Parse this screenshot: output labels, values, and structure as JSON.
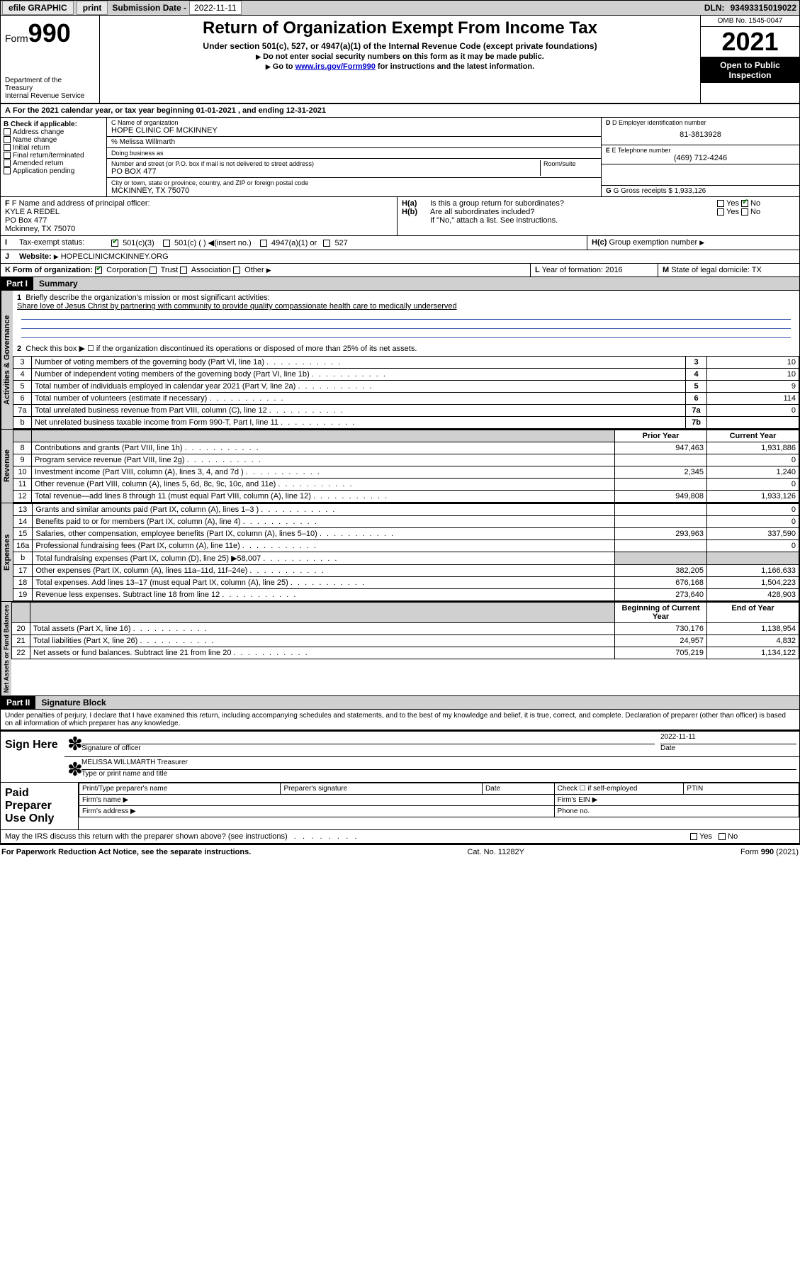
{
  "topbar": {
    "efile": "efile GRAPHIC",
    "print": "print",
    "subdate_label": "Submission Date - ",
    "subdate": "2022-11-11",
    "dln_label": "DLN: ",
    "dln": "93493315019022"
  },
  "header": {
    "form_label": "Form",
    "form_number": "990",
    "title": "Return of Organization Exempt From Income Tax",
    "subtitle": "Under section 501(c), 527, or 4947(a)(1) of the Internal Revenue Code (except private foundations)",
    "instr1": "Do not enter social security numbers on this form as it may be made public.",
    "instr2_pre": "Go to ",
    "instr2_link": "www.irs.gov/Form990",
    "instr2_post": " for instructions and the latest information.",
    "dept": "Department of the Treasury\nInternal Revenue Service",
    "omb": "OMB No. 1545-0047",
    "year": "2021",
    "inspect": "Open to Public Inspection"
  },
  "line_a": "For the 2021 calendar year, or tax year beginning 01-01-2021    , and ending 12-31-2021",
  "box_b": {
    "label": "B Check if applicable:",
    "items": [
      "Address change",
      "Name change",
      "Initial return",
      "Final return/terminated",
      "Amended return",
      "Application pending"
    ]
  },
  "box_c": {
    "name_lbl": "C Name of organization",
    "name": "HOPE CLINIC OF MCKINNEY",
    "care_lbl": "% ",
    "care": "Melissa Willmarth",
    "dba_lbl": "Doing business as",
    "addr_lbl": "Number and street (or P.O. box if mail is not delivered to street address)",
    "room_lbl": "Room/suite",
    "addr": "PO BOX 477",
    "city_lbl": "City or town, state or province, country, and ZIP or foreign postal code",
    "city": "MCKINNEY, TX  75070"
  },
  "box_d": {
    "lbl": "D Employer identification number",
    "val": "81-3813928"
  },
  "box_e": {
    "lbl": "E Telephone number",
    "val": "(469) 712-4246"
  },
  "box_g": {
    "lbl": "G Gross receipts $ ",
    "val": "1,933,126"
  },
  "box_f": {
    "lbl": "F Name and address of principal officer:",
    "line1": "KYLE A REDEL",
    "line2": "PO Box 477",
    "line3": "Mckinney, TX  75070"
  },
  "box_h": {
    "ha": "Is this a group return for subordinates?",
    "hb": "Are all subordinates included?",
    "hnote": "If \"No,\" attach a list. See instructions.",
    "hc": "Group exemption number",
    "yes": "Yes",
    "no": "No"
  },
  "line_i": {
    "lbl": "Tax-exempt status:",
    "o1": "501(c)(3)",
    "o2": "501(c) (  )",
    "o2b": "(insert no.)",
    "o3": "4947(a)(1) or",
    "o4": "527"
  },
  "line_j": {
    "lbl": "Website:",
    "val": "HOPECLINICMCKINNEY.ORG"
  },
  "line_k": {
    "lbl": "K Form of organization:",
    "o1": "Corporation",
    "o2": "Trust",
    "o3": "Association",
    "o4": "Other"
  },
  "line_l": {
    "lbl": "L Year of formation: ",
    "val": "2016"
  },
  "line_m": {
    "lbl": "M State of legal domicile: ",
    "val": "TX"
  },
  "part1": {
    "hdr": "Part I",
    "title": "Summary",
    "q1_lbl": "Briefly describe the organization's mission or most significant activities:",
    "q1_val": "Share love of Jesus Christ by partnering with community to provide quality compassionate health care to medically underserved",
    "q2": "Check this box ▶ ☐  if the organization discontinued its operations or disposed of more than 25% of its net assets.",
    "rows_gov": [
      {
        "n": "3",
        "d": "Number of voting members of the governing body (Part VI, line 1a)",
        "box": "3",
        "v": "10"
      },
      {
        "n": "4",
        "d": "Number of independent voting members of the governing body (Part VI, line 1b)",
        "box": "4",
        "v": "10"
      },
      {
        "n": "5",
        "d": "Total number of individuals employed in calendar year 2021 (Part V, line 2a)",
        "box": "5",
        "v": "9"
      },
      {
        "n": "6",
        "d": "Total number of volunteers (estimate if necessary)",
        "box": "6",
        "v": "114"
      },
      {
        "n": "7a",
        "d": "Total unrelated business revenue from Part VIII, column (C), line 12",
        "box": "7a",
        "v": "0"
      },
      {
        "n": "b",
        "d": "Net unrelated business taxable income from Form 990-T, Part I, line 11",
        "box": "7b",
        "v": ""
      }
    ],
    "col_prior": "Prior Year",
    "col_current": "Current Year",
    "rows_rev": [
      {
        "n": "8",
        "d": "Contributions and grants (Part VIII, line 1h)",
        "p": "947,463",
        "c": "1,931,886"
      },
      {
        "n": "9",
        "d": "Program service revenue (Part VIII, line 2g)",
        "p": "",
        "c": "0"
      },
      {
        "n": "10",
        "d": "Investment income (Part VIII, column (A), lines 3, 4, and 7d )",
        "p": "2,345",
        "c": "1,240"
      },
      {
        "n": "11",
        "d": "Other revenue (Part VIII, column (A), lines 5, 6d, 8c, 9c, 10c, and 11e)",
        "p": "",
        "c": "0"
      },
      {
        "n": "12",
        "d": "Total revenue—add lines 8 through 11 (must equal Part VIII, column (A), line 12)",
        "p": "949,808",
        "c": "1,933,126"
      }
    ],
    "rows_exp": [
      {
        "n": "13",
        "d": "Grants and similar amounts paid (Part IX, column (A), lines 1–3 )",
        "p": "",
        "c": "0"
      },
      {
        "n": "14",
        "d": "Benefits paid to or for members (Part IX, column (A), line 4)",
        "p": "",
        "c": "0"
      },
      {
        "n": "15",
        "d": "Salaries, other compensation, employee benefits (Part IX, column (A), lines 5–10)",
        "p": "293,963",
        "c": "337,590"
      },
      {
        "n": "16a",
        "d": "Professional fundraising fees (Part IX, column (A), line 11e)",
        "p": "",
        "c": "0"
      },
      {
        "n": "b",
        "d": "Total fundraising expenses (Part IX, column (D), line 25) ▶58,007",
        "p": "grey",
        "c": "grey"
      },
      {
        "n": "17",
        "d": "Other expenses (Part IX, column (A), lines 11a–11d, 11f–24e)",
        "p": "382,205",
        "c": "1,166,633"
      },
      {
        "n": "18",
        "d": "Total expenses. Add lines 13–17 (must equal Part IX, column (A), line 25)",
        "p": "676,168",
        "c": "1,504,223"
      },
      {
        "n": "19",
        "d": "Revenue less expenses. Subtract line 18 from line 12",
        "p": "273,640",
        "c": "428,903"
      }
    ],
    "col_begin": "Beginning of Current Year",
    "col_end": "End of Year",
    "rows_net": [
      {
        "n": "20",
        "d": "Total assets (Part X, line 16)",
        "p": "730,176",
        "c": "1,138,954"
      },
      {
        "n": "21",
        "d": "Total liabilities (Part X, line 26)",
        "p": "24,957",
        "c": "4,832"
      },
      {
        "n": "22",
        "d": "Net assets or fund balances. Subtract line 21 from line 20",
        "p": "705,219",
        "c": "1,134,122"
      }
    ],
    "tabs": {
      "gov": "Activities & Governance",
      "rev": "Revenue",
      "exp": "Expenses",
      "net": "Net Assets or Fund Balances"
    }
  },
  "part2": {
    "hdr": "Part II",
    "title": "Signature Block",
    "decl": "Under penalties of perjury, I declare that I have examined this return, including accompanying schedules and statements, and to the best of my knowledge and belief, it is true, correct, and complete. Declaration of preparer (other than officer) is based on all information of which preparer has any knowledge.",
    "sign_here": "Sign Here",
    "sig_officer": "Signature of officer",
    "sig_date": "2022-11-11",
    "date_lbl": "Date",
    "name_title": "MELISSA WILLMARTH Treasurer",
    "name_lbl": "Type or print name and title",
    "paid": "Paid Preparer Use Only",
    "p_name": "Print/Type preparer's name",
    "p_sig": "Preparer's signature",
    "p_date": "Date",
    "p_check": "Check ☐ if self-employed",
    "p_ptin": "PTIN",
    "p_firm": "Firm's name  ▶",
    "p_ein": "Firm's EIN ▶",
    "p_addr": "Firm's address ▶",
    "p_phone": "Phone no.",
    "may_irs": "May the IRS discuss this return with the preparer shown above? (see instructions)"
  },
  "footer": {
    "left": "For Paperwork Reduction Act Notice, see the separate instructions.",
    "mid": "Cat. No. 11282Y",
    "right": "Form 990 (2021)"
  }
}
